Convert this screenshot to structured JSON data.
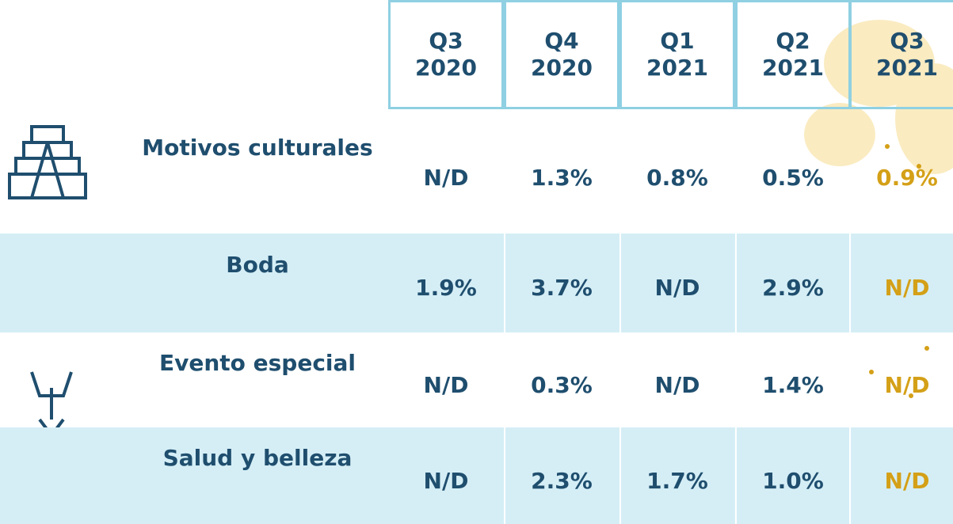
{
  "table": {
    "columns": [
      "Q3 2020",
      "Q4 2020",
      "Q1 2021",
      "Q2 2021",
      "Q3 2021"
    ],
    "rows": [
      {
        "label": "Motivos culturales",
        "values": [
          "N/D",
          "1.3%",
          "0.8%",
          "0.5%",
          "0.9%"
        ]
      },
      {
        "label": "Boda",
        "values": [
          "1.9%",
          "3.7%",
          "N/D",
          "2.9%",
          "N/D"
        ]
      },
      {
        "label": "Evento especial",
        "values": [
          "N/D",
          "0.3%",
          "N/D",
          "1.4%",
          "N/D"
        ]
      },
      {
        "label": "Salud y belleza",
        "values": [
          "N/D",
          "2.3%",
          "1.7%",
          "1.0%",
          "N/D"
        ]
      }
    ]
  }
}
